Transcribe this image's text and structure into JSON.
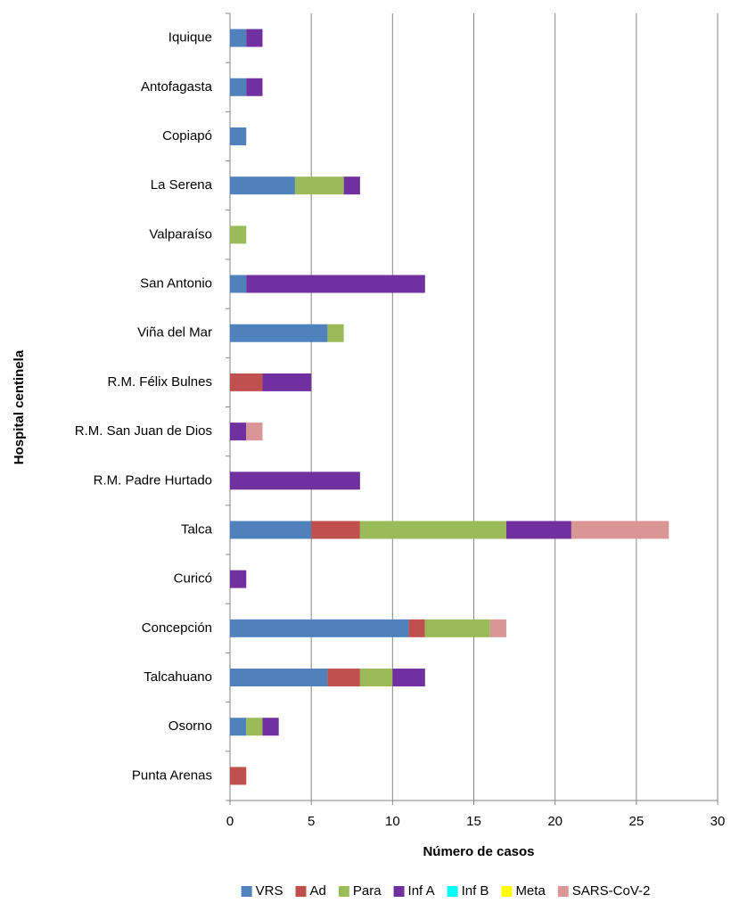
{
  "chart_data": {
    "type": "stacked-bar-horizontal",
    "x_label": "Número de casos",
    "y_label": "Hospital centinela",
    "categories": [
      "Iquique",
      "Antofagasta",
      "Copiapó",
      "La Serena",
      "Valparaíso",
      "San Antonio",
      "Viña del Mar",
      "R.M. Félix Bulnes",
      "R.M. San Juan de Dios",
      "R.M. Padre Hurtado",
      "Talca",
      "Curicó",
      "Concepción",
      "Talcahuano",
      "Osorno",
      "Punta Arenas"
    ],
    "series": [
      {
        "name": "VRS",
        "color": "#4f81bd",
        "values": [
          1,
          1,
          1,
          4,
          0,
          1,
          6,
          0,
          0,
          0,
          5,
          0,
          11,
          6,
          1,
          0
        ]
      },
      {
        "name": "Ad",
        "color": "#c0504d",
        "values": [
          0,
          0,
          0,
          0,
          0,
          0,
          0,
          2,
          0,
          0,
          3,
          0,
          1,
          2,
          0,
          1
        ]
      },
      {
        "name": "Para",
        "color": "#9bbb59",
        "values": [
          0,
          0,
          0,
          3,
          1,
          0,
          1,
          0,
          0,
          0,
          9,
          0,
          4,
          2,
          1,
          0
        ]
      },
      {
        "name": "Inf A",
        "color": "#7030a0",
        "values": [
          1,
          1,
          0,
          1,
          0,
          11,
          0,
          3,
          1,
          8,
          4,
          1,
          0,
          2,
          1,
          0
        ]
      },
      {
        "name": "Inf B",
        "color": "#00ffff",
        "values": [
          0,
          0,
          0,
          0,
          0,
          0,
          0,
          0,
          0,
          0,
          0,
          0,
          0,
          0,
          0,
          0
        ]
      },
      {
        "name": "Meta",
        "color": "#ffff00",
        "values": [
          0,
          0,
          0,
          0,
          0,
          0,
          0,
          0,
          0,
          0,
          0,
          0,
          0,
          0,
          0,
          0
        ]
      },
      {
        "name": "SARS-CoV-2",
        "color": "#d99694",
        "values": [
          0,
          0,
          0,
          0,
          0,
          0,
          0,
          0,
          1,
          0,
          6,
          0,
          1,
          0,
          0,
          0
        ]
      }
    ],
    "xlim": [
      0,
      30
    ],
    "xticks": [
      0,
      5,
      10,
      15,
      20,
      25,
      30
    ],
    "grid": true,
    "legend": "bottom"
  }
}
